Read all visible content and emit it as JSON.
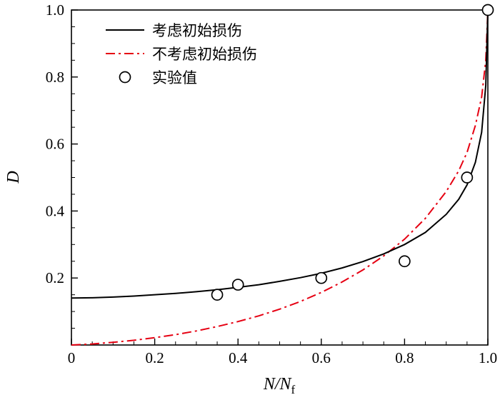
{
  "chart_data": {
    "type": "line",
    "title": "",
    "ylabel": "D",
    "xlabel_main": "N/N",
    "xlabel_sub": "f",
    "xlim": [
      0,
      1
    ],
    "ylim": [
      0,
      1
    ],
    "grid": false,
    "xticks": [
      {
        "v": 0,
        "label": "0"
      },
      {
        "v": 0.2,
        "label": "0.2"
      },
      {
        "v": 0.4,
        "label": "0.4"
      },
      {
        "v": 0.6,
        "label": "0.6"
      },
      {
        "v": 0.8,
        "label": "0.8"
      },
      {
        "v": 1.0,
        "label": "1.0"
      }
    ],
    "yticks": [
      {
        "v": 0.2,
        "label": "0.2"
      },
      {
        "v": 0.4,
        "label": "0.4"
      },
      {
        "v": 0.6,
        "label": "0.6"
      },
      {
        "v": 0.8,
        "label": "0.8"
      },
      {
        "v": 1.0,
        "label": "1.0"
      }
    ],
    "minor_step": 0.05,
    "colors": {
      "frame": "#000000",
      "with_initial_damage": "#000000",
      "without_initial_damage": "#e60012",
      "marker_stroke": "#000000",
      "marker_fill": "#ffffff"
    },
    "series": [
      {
        "name": "考虑初始损伤",
        "style": "solid",
        "color": "#000000",
        "x": [
          0,
          0.05,
          0.1,
          0.15,
          0.2,
          0.25,
          0.3,
          0.35,
          0.4,
          0.45,
          0.5,
          0.55,
          0.6,
          0.65,
          0.7,
          0.75,
          0.8,
          0.85,
          0.9,
          0.93,
          0.95,
          0.97,
          0.985,
          0.995,
          1.0
        ],
        "y": [
          0.14,
          0.141,
          0.143,
          0.146,
          0.15,
          0.154,
          0.159,
          0.165,
          0.172,
          0.18,
          0.19,
          0.201,
          0.214,
          0.23,
          0.249,
          0.272,
          0.3,
          0.336,
          0.39,
          0.435,
          0.478,
          0.545,
          0.635,
          0.775,
          1.0
        ]
      },
      {
        "name": "不考虑初始损伤",
        "style": "dashdot",
        "color": "#e60012",
        "x": [
          0,
          0.05,
          0.1,
          0.15,
          0.2,
          0.25,
          0.3,
          0.35,
          0.4,
          0.45,
          0.5,
          0.55,
          0.6,
          0.65,
          0.7,
          0.75,
          0.8,
          0.85,
          0.9,
          0.93,
          0.95,
          0.97,
          0.985,
          0.995,
          1.0
        ],
        "y": [
          0.0,
          0.003,
          0.008,
          0.014,
          0.022,
          0.031,
          0.042,
          0.055,
          0.07,
          0.087,
          0.107,
          0.13,
          0.157,
          0.188,
          0.224,
          0.266,
          0.316,
          0.378,
          0.458,
          0.52,
          0.575,
          0.655,
          0.74,
          0.85,
          1.0
        ]
      }
    ],
    "scatter": {
      "name": "实验值",
      "points": [
        [
          0.35,
          0.15
        ],
        [
          0.4,
          0.18
        ],
        [
          0.6,
          0.2
        ],
        [
          0.8,
          0.25
        ],
        [
          0.95,
          0.5
        ],
        [
          1.0,
          1.0
        ]
      ]
    },
    "legend": {
      "position": "top-left",
      "items": [
        {
          "label": "考虑初始损伤",
          "swatch": "line-solid",
          "color": "#000000"
        },
        {
          "label": "不考虑初始损伤",
          "swatch": "line-dashdot",
          "color": "#e60012"
        },
        {
          "label": "实验值",
          "swatch": "circle",
          "color": "#000000"
        }
      ]
    }
  }
}
